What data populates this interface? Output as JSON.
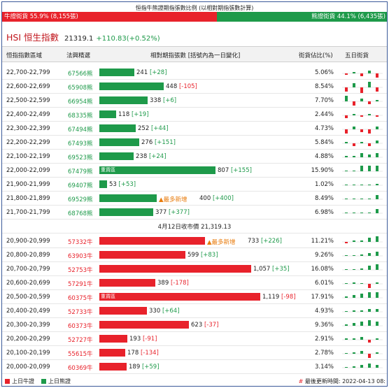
{
  "ratio": {
    "title": "恒指牛熊證期指張數比例 (以相對期指張數計算)",
    "bull_label": "牛證街貨 55.9% (8,155張)",
    "bear_label": "熊證街貨 44.1% (6,435張)",
    "bull_pct": 55.9,
    "colors": {
      "bull": "#e8222b",
      "bear": "#1e9a4a"
    }
  },
  "header": {
    "title": "HSI 恒生指數",
    "price": "21319.1",
    "change": "+110.83(+0.52%)"
  },
  "columns": {
    "range": "恒指指數區域",
    "code": "法興精選",
    "contracts": "相對期指張數 [括號內為一日變化]",
    "share": "街貨佔比(%)",
    "five_day": "五日街貨"
  },
  "bar_scale_max": 1119,
  "bear_rows": [
    {
      "range": "22,700-22,799",
      "code": "67566熊",
      "value": 241,
      "value_text": "241",
      "change": "[+28]",
      "share": "5.06%",
      "tag": "",
      "spark": [
        -1,
        1,
        -2,
        2,
        -3
      ]
    },
    {
      "range": "22,600-22,699",
      "code": "65908熊",
      "value": 448,
      "value_text": "448",
      "change": "[-105]",
      "share": "8.54%",
      "tag": "",
      "spark": [
        -3,
        3,
        -4,
        4,
        -3
      ]
    },
    {
      "range": "22,500-22,599",
      "code": "66954熊",
      "value": 338,
      "value_text": "338",
      "change": "[+6]",
      "share": "7.70%",
      "tag": "",
      "spark": [
        4,
        -3,
        2,
        -2,
        1
      ]
    },
    {
      "range": "22,400-22,499",
      "code": "68335熊",
      "value": 118,
      "value_text": "118",
      "change": "[+19]",
      "share": "2.44%",
      "tag": "",
      "spark": [
        -2,
        1,
        -1,
        1,
        -1
      ]
    },
    {
      "range": "22,300-22,399",
      "code": "67494熊",
      "value": 252,
      "value_text": "252",
      "change": "[+44]",
      "share": "4.73%",
      "tag": "",
      "spark": [
        -3,
        2,
        -2,
        -3,
        2
      ]
    },
    {
      "range": "22,200-22,299",
      "code": "67493熊",
      "value": 276,
      "value_text": "276",
      "change": "[+151]",
      "share": "5.84%",
      "tag": "",
      "spark": [
        1,
        -2,
        1,
        -2,
        2
      ]
    },
    {
      "range": "22,100-22,199",
      "code": "69523熊",
      "value": 238,
      "value_text": "238",
      "change": "[+24]",
      "share": "4.88%",
      "tag": "",
      "spark": [
        1,
        1,
        3,
        2,
        3
      ]
    },
    {
      "range": "22,000-22,099",
      "code": "67479熊",
      "value": 807,
      "value_text": "807",
      "change": "[+155]",
      "share": "15.90%",
      "tag": "重貨區",
      "spark": [
        0,
        0,
        4,
        4,
        4
      ]
    },
    {
      "range": "21,900-21,999",
      "code": "69407熊",
      "value": 53,
      "value_text": "53",
      "change": "[+53]",
      "share": "1.02%",
      "tag": "",
      "spark": [
        0,
        0,
        0,
        0,
        1
      ]
    },
    {
      "range": "21,800-21,899",
      "code": "69529熊",
      "value": 400,
      "value_text": "400",
      "change": "[+400]",
      "share": "8.49%",
      "tag": "▲最多新增",
      "spark": [
        0,
        0,
        0,
        0,
        3
      ]
    },
    {
      "range": "21,700-21,799",
      "code": "68768熊",
      "value": 377,
      "value_text": "377",
      "change": "[+377]",
      "share": "6.98%",
      "tag": "",
      "spark": [
        0,
        0,
        0,
        0,
        3
      ]
    }
  ],
  "separator": "4月12日收市價 21,319.13",
  "bull_rows": [
    {
      "range": "20,900-20,999",
      "code": "57332牛",
      "value": 733,
      "value_text": "733",
      "change": "[+226]",
      "share": "11.21%",
      "tag": "▲最多新增",
      "spark": [
        -1,
        1,
        1,
        3,
        4
      ]
    },
    {
      "range": "20,800-20,899",
      "code": "63903牛",
      "value": 599,
      "value_text": "599",
      "change": "[+83]",
      "share": "9.26%",
      "tag": "",
      "spark": [
        0,
        0,
        1,
        2,
        3
      ]
    },
    {
      "range": "20,700-20,799",
      "code": "52753牛",
      "value": 1057,
      "value_text": "1,057",
      "change": "[+35]",
      "share": "16.08%",
      "tag": "",
      "spark": [
        0,
        0,
        1,
        3,
        4
      ]
    },
    {
      "range": "20,600-20,699",
      "code": "57291牛",
      "value": 389,
      "value_text": "389",
      "change": "[-178]",
      "share": "6.01%",
      "tag": "",
      "spark": [
        0,
        1,
        0,
        -3,
        1
      ]
    },
    {
      "range": "20,500-20,599",
      "code": "60375牛",
      "value": 1119,
      "value_text": "1,119",
      "change": "[-98]",
      "share": "17.91%",
      "tag": "重貨區",
      "spark": [
        1,
        2,
        3,
        4,
        4
      ]
    },
    {
      "range": "20,400-20,499",
      "code": "52733牛",
      "value": 330,
      "value_text": "330",
      "change": "[+64]",
      "share": "4.93%",
      "tag": "",
      "spark": [
        0,
        1,
        1,
        2,
        2
      ]
    },
    {
      "range": "20,300-20,399",
      "code": "60373牛",
      "value": 623,
      "value_text": "623",
      "change": "[-37]",
      "share": "9.36%",
      "tag": "",
      "spark": [
        1,
        2,
        3,
        4,
        3
      ]
    },
    {
      "range": "20,200-20,299",
      "code": "52727牛",
      "value": 193,
      "value_text": "193",
      "change": "[-91]",
      "share": "2.91%",
      "tag": "",
      "spark": [
        1,
        1,
        2,
        -2,
        1
      ]
    },
    {
      "range": "20,100-20,199",
      "code": "55615牛",
      "value": 178,
      "value_text": "178",
      "change": "[-134]",
      "share": "2.78%",
      "tag": "",
      "spark": [
        0,
        1,
        2,
        -3,
        1
      ]
    },
    {
      "range": "20,000-20,099",
      "code": "60369牛",
      "value": 189,
      "value_text": "189",
      "change": "[+59]",
      "share": "3.14%",
      "tag": "",
      "spark": [
        0,
        1,
        2,
        3,
        2
      ]
    }
  ],
  "footer": {
    "legend_bull": "上日牛證",
    "legend_bear": "上日熊證",
    "updated": "最後更新時間: 2022-04-13 08:"
  }
}
